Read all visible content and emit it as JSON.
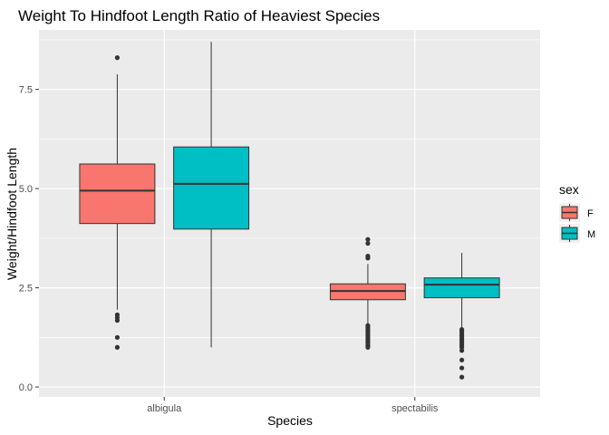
{
  "chart_data": {
    "type": "box",
    "title": "Weight To Hindfoot Length Ratio of Heaviest Species",
    "xlabel": "Species",
    "ylabel": "Weight/Hindfoot Length",
    "categories": [
      "albigula",
      "spectabilis"
    ],
    "ylim": [
      -0.25,
      9.0
    ],
    "yticks": [
      0.0,
      2.5,
      5.0,
      7.5
    ],
    "ytick_labels": [
      "0.0",
      "2.5",
      "5.0",
      "7.5"
    ],
    "grid": true,
    "legend": {
      "title": "sex",
      "position": "right"
    },
    "series": [
      {
        "name": "F",
        "color": "#F8766D",
        "boxes": [
          {
            "category": "albigula",
            "q1": 4.12,
            "median": 4.95,
            "q3": 5.62,
            "whisker_low": 1.95,
            "whisker_high": 7.88,
            "outliers": [
              8.3,
              1.82,
              1.75,
              1.68,
              1.25,
              1.0
            ]
          },
          {
            "category": "spectabilis",
            "q1": 2.2,
            "median": 2.42,
            "q3": 2.6,
            "whisker_low": 1.6,
            "whisker_high": 3.1,
            "outliers": [
              3.72,
              3.62,
              3.3,
              3.25,
              1.55,
              1.5,
              1.45,
              1.4,
              1.35,
              1.3,
              1.25,
              1.2,
              1.15,
              1.1,
              1.05,
              1.0
            ]
          }
        ]
      },
      {
        "name": "M",
        "color": "#00BFC4",
        "boxes": [
          {
            "category": "albigula",
            "q1": 3.98,
            "median": 5.12,
            "q3": 6.05,
            "whisker_low": 1.0,
            "whisker_high": 8.7,
            "outliers": []
          },
          {
            "category": "spectabilis",
            "q1": 2.25,
            "median": 2.58,
            "q3": 2.75,
            "whisker_low": 1.5,
            "whisker_high": 3.38,
            "outliers": [
              1.45,
              1.4,
              1.35,
              1.3,
              1.25,
              1.2,
              1.15,
              1.1,
              1.05,
              1.0,
              0.92,
              0.68,
              0.48,
              0.25
            ]
          }
        ]
      }
    ]
  }
}
